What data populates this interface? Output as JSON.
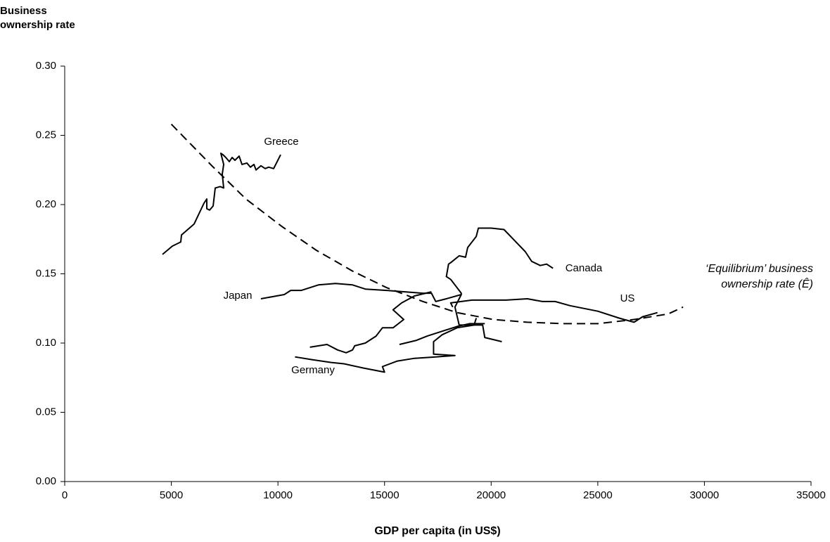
{
  "chart_data": {
    "type": "line",
    "y_label": "Business ownership rate",
    "x_label": "GDP per capita (in US$)",
    "xlim": [
      0,
      35000
    ],
    "xticks": [
      0,
      5000,
      10000,
      15000,
      20000,
      25000,
      30000,
      35000
    ],
    "ylim": [
      0,
      0.3
    ],
    "yticks": [
      {
        "value": 0,
        "label": "0.00"
      },
      {
        "value": 0.05,
        "label": "0.05"
      },
      {
        "value": 0.1,
        "label": "0.10"
      },
      {
        "value": 0.15,
        "label": "0.15"
      },
      {
        "value": 0.2,
        "label": "0.20"
      },
      {
        "value": 0.25,
        "label": "0.25"
      },
      {
        "value": 0.3,
        "label": "0.30"
      }
    ],
    "grid": false,
    "series": [
      {
        "name": "Greece",
        "color": "#000000",
        "x": [
          4585,
          5047,
          5443,
          5476,
          6070,
          6532,
          6664,
          6664,
          6796,
          6961,
          7060,
          7290,
          7455,
          7389,
          7455,
          7323,
          7422,
          7554,
          7719,
          7851,
          7983,
          8181,
          8313,
          8544,
          8709,
          8874,
          8973,
          9204,
          9402,
          9567,
          9798,
          9930,
          10128
        ],
        "values": [
          0.164,
          0.17,
          0.173,
          0.178,
          0.186,
          0.201,
          0.204,
          0.197,
          0.196,
          0.199,
          0.212,
          0.213,
          0.212,
          0.222,
          0.229,
          0.237,
          0.236,
          0.234,
          0.231,
          0.234,
          0.232,
          0.235,
          0.229,
          0.23,
          0.227,
          0.229,
          0.225,
          0.228,
          0.226,
          0.227,
          0.226,
          0.23,
          0.236
        ]
      },
      {
        "name": "Canada",
        "color": "#000000",
        "x": [
          22900,
          22600,
          22300,
          21900,
          21600,
          21100,
          20600,
          20000,
          19400,
          19300,
          18900,
          18800,
          18500,
          18100,
          18000,
          17900,
          18100,
          18300,
          18600,
          18600,
          18300,
          18500,
          19600,
          19700,
          20500
        ],
        "values": [
          0.154,
          0.157,
          0.156,
          0.159,
          0.166,
          0.174,
          0.182,
          0.183,
          0.183,
          0.177,
          0.169,
          0.162,
          0.163,
          0.158,
          0.157,
          0.148,
          0.146,
          0.142,
          0.136,
          0.135,
          0.126,
          0.113,
          0.113,
          0.104,
          0.101
        ]
      },
      {
        "name": "Japan",
        "color": "#000000",
        "x": [
          9200,
          10300,
          10600,
          11100,
          11900,
          12700,
          13500,
          14100,
          15100,
          16800,
          17200,
          17400,
          17900,
          18600
        ],
        "values": [
          0.132,
          0.135,
          0.138,
          0.138,
          0.142,
          0.143,
          0.142,
          0.139,
          0.138,
          0.136,
          0.136,
          0.13,
          0.132,
          0.135
        ]
      },
      {
        "name": "US",
        "color": "#000000",
        "x": [
          15700,
          16500,
          17000,
          17600,
          18400,
          19000,
          19700,
          null,
          18200,
          18100,
          19100,
          20100,
          20700,
          21700,
          22400,
          23000,
          23700,
          25000,
          26000,
          26700,
          27100,
          27800
        ],
        "values": [
          0.099,
          0.102,
          0.105,
          0.108,
          0.112,
          0.114,
          0.114,
          null,
          0.126,
          0.129,
          0.131,
          0.131,
          0.131,
          0.132,
          0.13,
          0.13,
          0.127,
          0.123,
          0.118,
          0.115,
          0.119,
          0.122
        ]
      },
      {
        "name": "Germany",
        "color": "#000000",
        "x": [
          10800,
          11600,
          12500,
          13100,
          14000,
          15000,
          14900,
          15600,
          16400,
          17400,
          18300,
          17300,
          17300,
          17700,
          18400,
          19200,
          19300,
          null,
          11500,
          12300,
          12800,
          13200,
          13500,
          13600,
          14100,
          14600,
          14900,
          15400,
          15900,
          15400,
          15800,
          16400,
          17200
        ],
        "values": [
          0.09,
          0.088,
          0.086,
          0.085,
          0.082,
          0.079,
          0.083,
          0.087,
          0.089,
          0.09,
          0.091,
          0.092,
          0.101,
          0.106,
          0.111,
          0.113,
          0.118,
          null,
          0.097,
          0.099,
          0.095,
          0.093,
          0.095,
          0.098,
          0.1,
          0.105,
          0.111,
          0.111,
          0.117,
          0.124,
          0.129,
          0.134,
          0.137
        ]
      },
      {
        "name": "‘Equilibrium’ business ownership rate (Ê)",
        "color": "#000000",
        "style": "dashed",
        "x": [
          5000,
          6900,
          8500,
          10200,
          11800,
          13500,
          15100,
          16800,
          18400,
          20100,
          21700,
          23400,
          25000,
          26700,
          28300,
          29000
        ],
        "values": [
          0.258,
          0.228,
          0.204,
          0.184,
          0.167,
          0.152,
          0.14,
          0.13,
          0.122,
          0.117,
          0.115,
          0.114,
          0.114,
          0.117,
          0.121,
          0.126
        ]
      }
    ]
  }
}
